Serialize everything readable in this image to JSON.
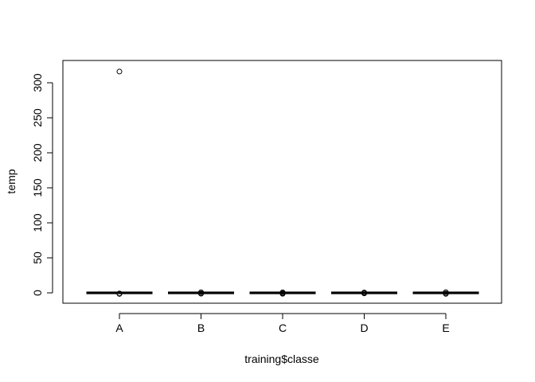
{
  "chart_data": {
    "type": "boxplot",
    "xlabel": "training$classe",
    "ylabel": "temp",
    "categories": [
      "A",
      "B",
      "C",
      "D",
      "E"
    ],
    "ylim": [
      -15,
      325
    ],
    "yticks": [
      0,
      50,
      100,
      150,
      200,
      250,
      300
    ],
    "grid": false,
    "boxes": [
      {
        "category": "A",
        "min": -0.4,
        "q1": -0.1,
        "median": 0,
        "q3": 0.1,
        "max": 0.4,
        "outliers": [
          316,
          -1.5,
          -0.8
        ]
      },
      {
        "category": "B",
        "min": -0.4,
        "q1": -0.1,
        "median": 0,
        "q3": 0.1,
        "max": 0.4,
        "outliers": [
          -1.2,
          0.9,
          -0.7
        ]
      },
      {
        "category": "C",
        "min": -0.4,
        "q1": -0.1,
        "median": 0,
        "q3": 0.1,
        "max": 0.4,
        "outliers": [
          -1.3,
          0.8,
          -0.6
        ]
      },
      {
        "category": "D",
        "min": -0.4,
        "q1": -0.1,
        "median": 0,
        "q3": 0.1,
        "max": 0.4,
        "outliers": [
          -0.7,
          0.6
        ]
      },
      {
        "category": "E",
        "min": -0.4,
        "q1": -0.1,
        "median": 0,
        "q3": 0.1,
        "max": 0.4,
        "outliers": [
          -1.4,
          1.0,
          -0.8
        ]
      }
    ]
  }
}
